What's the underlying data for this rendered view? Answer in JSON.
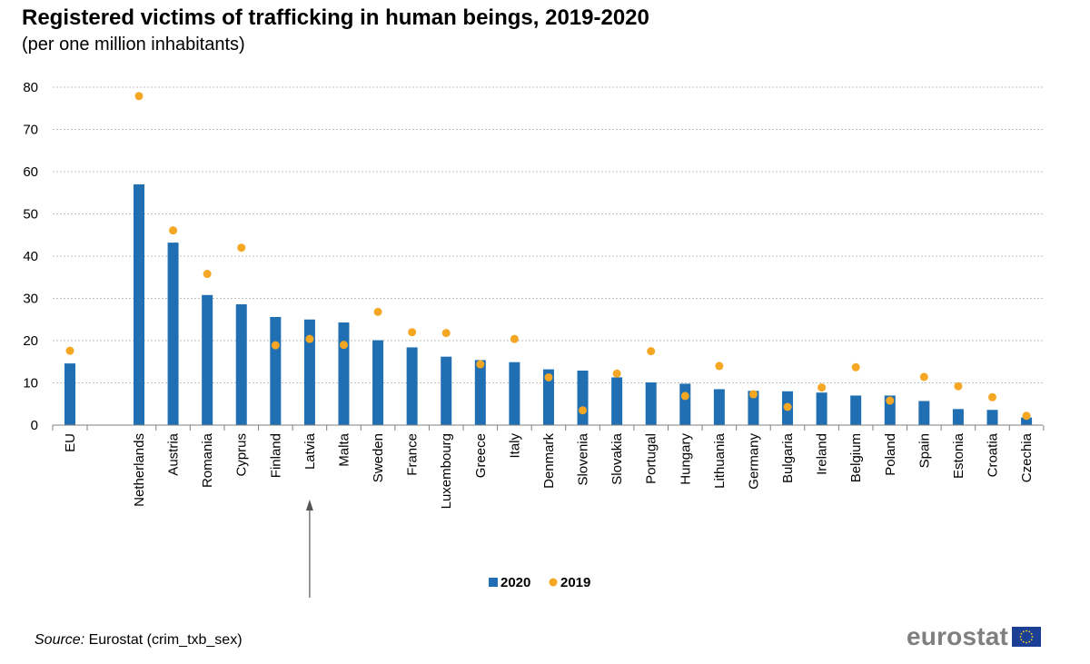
{
  "title": "Registered victims of trafficking in human beings, 2019-2020",
  "subtitle": "(per one million inhabitants)",
  "source_label": "Source:",
  "source_text": "Eurostat (crim_txb_sex)",
  "logo_text": "eurostat",
  "logo_icon": "eu-flag-icon",
  "colors": {
    "bar_2020": "#1f6fb2",
    "dot_2019": "#f5a623",
    "grid": "#bfbfbf",
    "axis": "#7f7f7f",
    "annotation": "#555555",
    "flag": "#1b3f94",
    "flag_stars": "#ffd21f"
  },
  "chart_data": {
    "type": "bar",
    "title": "Registered victims of trafficking in human beings, 2019-2020",
    "subtitle": "(per one million inhabitants)",
    "ylim": [
      0,
      80
    ],
    "yticks": [
      0,
      10,
      20,
      30,
      40,
      50,
      60,
      70,
      80
    ],
    "grid": true,
    "legend_position": "bottom-center",
    "categories": [
      "EU",
      "Netherlands",
      "Austria",
      "Romania",
      "Cyprus",
      "Finland",
      "Latvia",
      "Malta",
      "Sweden",
      "France",
      "Luxembourg",
      "Greece",
      "Italy",
      "Denmark",
      "Slovenia",
      "Slovakia",
      "Portugal",
      "Hungary",
      "Lithuania",
      "Germany",
      "Bulgaria",
      "Ireland",
      "Belgium",
      "Poland",
      "Spain",
      "Estonia",
      "Croatia",
      "Czechia"
    ],
    "series": [
      {
        "name": "2020",
        "mark": "bar",
        "values": [
          14.6,
          57,
          43.2,
          30.8,
          28.6,
          25.6,
          25,
          24.3,
          20.1,
          18.4,
          16.2,
          15.4,
          14.9,
          13.2,
          12.9,
          11.3,
          10.1,
          9.8,
          8.5,
          8.1,
          8,
          7.7,
          7,
          7,
          5.7,
          3.8,
          3.6,
          1.8
        ]
      },
      {
        "name": "2019",
        "mark": "dot",
        "values": [
          17.6,
          77.9,
          46.1,
          35.8,
          42,
          18.9,
          20.4,
          19,
          26.8,
          22,
          21.8,
          14.4,
          20.4,
          11.3,
          3.5,
          12.2,
          17.5,
          6.9,
          14,
          7.3,
          4.3,
          8.9,
          13.7,
          5.8,
          11.4,
          9.2,
          6.6,
          2.2
        ]
      }
    ],
    "annotation": {
      "type": "arrow",
      "target_category": "Latvia",
      "direction": "up"
    }
  }
}
